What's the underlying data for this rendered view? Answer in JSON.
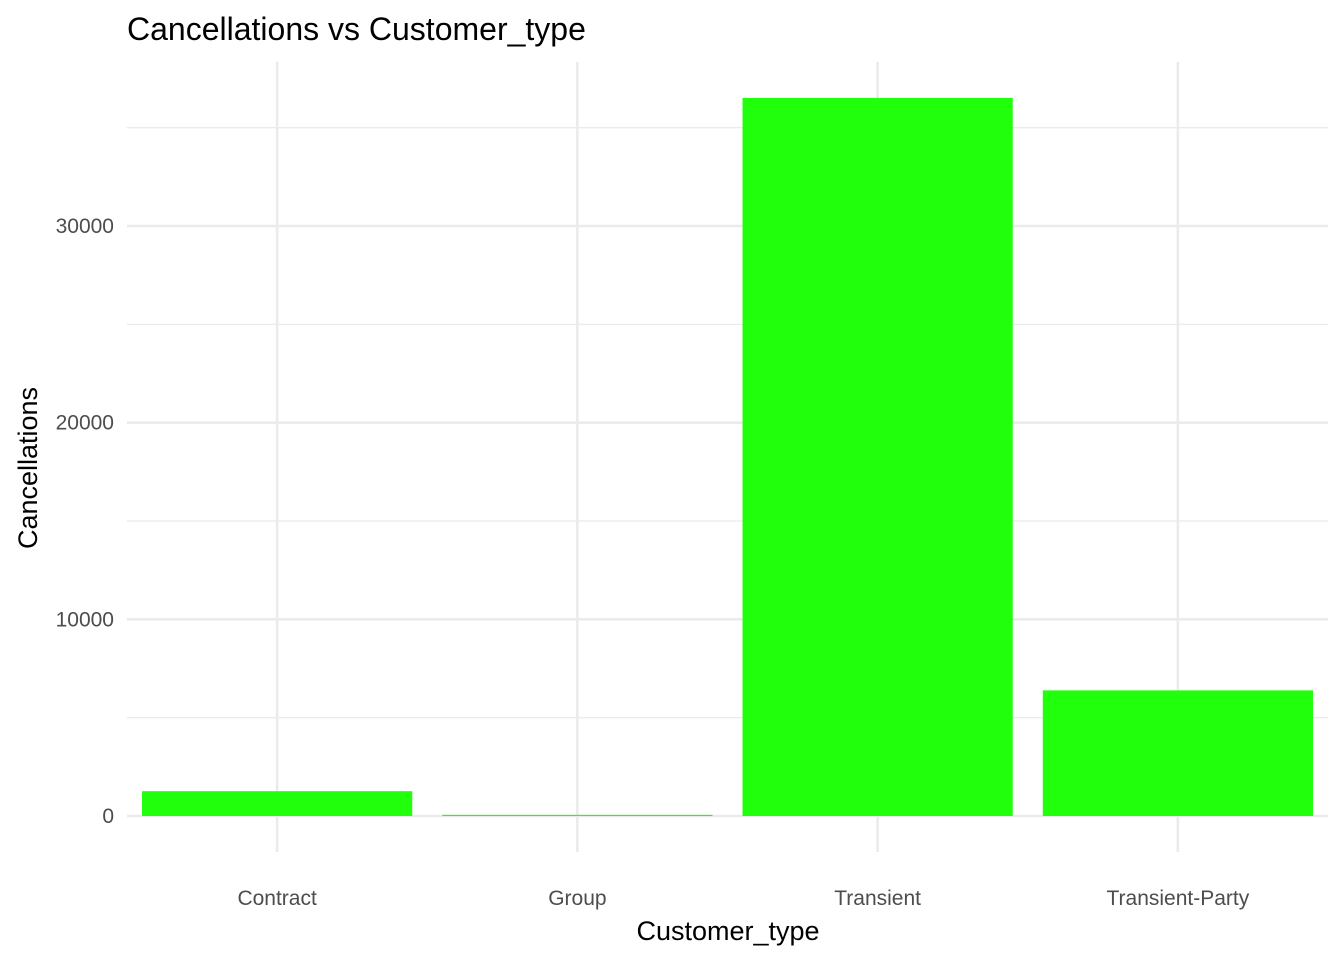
{
  "chart_data": {
    "type": "bar",
    "title": "Cancellations vs Customer_type",
    "xlabel": "Customer_type",
    "ylabel": "Cancellations",
    "categories": [
      "Contract",
      "Group",
      "Transient",
      "Transient-Party"
    ],
    "values": [
      1262,
      59,
      36514,
      6389
    ],
    "ylim": [
      -1830,
      38340
    ],
    "y_ticks": [
      0,
      10000,
      20000,
      30000
    ],
    "y_tick_labels": [
      "0",
      "10000",
      "20000",
      "30000"
    ],
    "grid": true,
    "bar_color": "#22ff0d",
    "grid_color": "#ebebeb"
  }
}
